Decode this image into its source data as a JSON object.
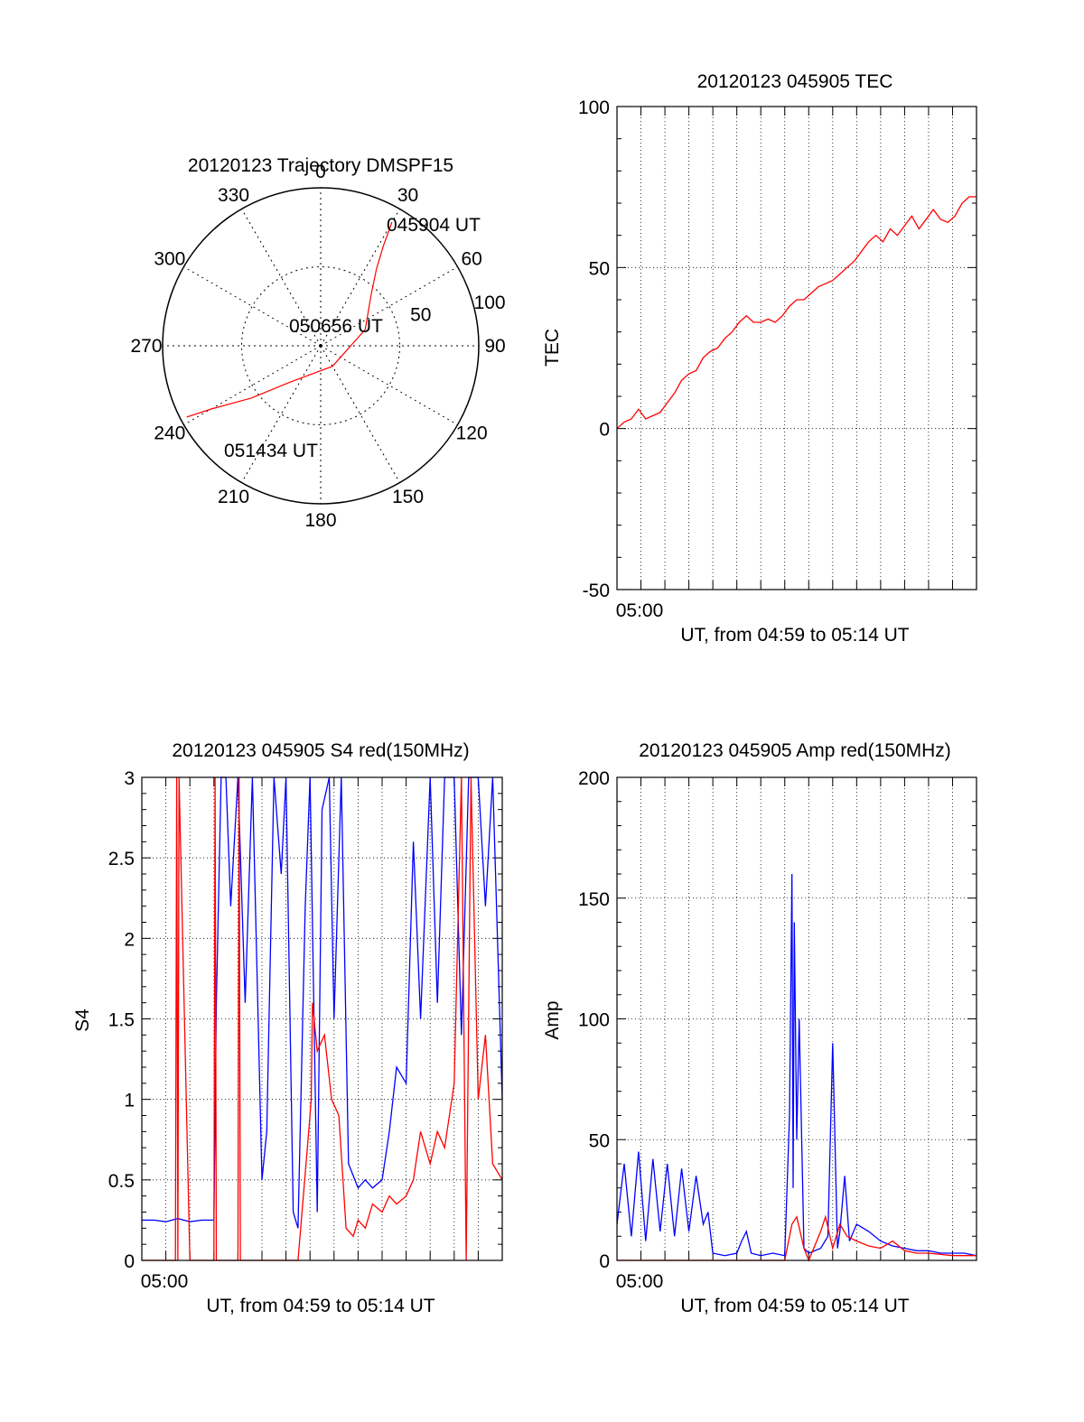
{
  "chart_data": [
    {
      "type": "polar-trajectory",
      "title": "20120123 Trajectory DMSPF15",
      "azimuth_labels": [
        "0",
        "30",
        "60",
        "90",
        "120",
        "150",
        "180",
        "210",
        "240",
        "270",
        "300",
        "330"
      ],
      "azimuth_values": [
        0,
        30,
        60,
        90,
        120,
        150,
        180,
        210,
        240,
        270,
        300,
        330
      ],
      "radial_labels": [
        "50",
        "100"
      ],
      "radial_values": [
        50,
        100
      ],
      "radial_max": 100,
      "track": [
        {
          "az": 30,
          "r": 90
        },
        {
          "az": 32,
          "r": 75
        },
        {
          "az": 36,
          "r": 60
        },
        {
          "az": 45,
          "r": 45
        },
        {
          "az": 70,
          "r": 30
        },
        {
          "az": 150,
          "r": 15
        },
        {
          "az": 220,
          "r": 30
        },
        {
          "az": 233,
          "r": 55
        },
        {
          "az": 240,
          "r": 80
        },
        {
          "az": 242,
          "r": 96
        }
      ],
      "annotations": [
        "045904 UT",
        "050656 UT",
        "051434 UT"
      ],
      "line_color": "#ff0000"
    },
    {
      "type": "line",
      "title": "20120123 045905 TEC",
      "xlabel": "UT, from 04:59 to 05:14 UT",
      "ylabel": "TEC",
      "xlim": [
        0,
        15
      ],
      "ylim": [
        -50,
        100
      ],
      "xtick_labels": [
        "05:00"
      ],
      "xtick_positions": [
        1
      ],
      "yticks": [
        -50,
        0,
        50,
        100
      ],
      "grid": true,
      "series": [
        {
          "color": "#ff0000",
          "x": [
            0,
            0.3,
            0.6,
            0.9,
            1.2,
            1.5,
            1.8,
            2.1,
            2.4,
            2.7,
            3.0,
            3.3,
            3.6,
            3.9,
            4.2,
            4.5,
            4.8,
            5.1,
            5.4,
            5.7,
            6.0,
            6.3,
            6.6,
            6.9,
            7.2,
            7.5,
            7.8,
            8.1,
            8.4,
            8.7,
            9.0,
            9.3,
            9.6,
            9.9,
            10.2,
            10.5,
            10.8,
            11.1,
            11.4,
            11.7,
            12.0,
            12.3,
            12.6,
            12.9,
            13.2,
            13.5,
            13.8,
            14.1,
            14.4,
            14.7,
            15.0
          ],
          "y": [
            0,
            2,
            3,
            6,
            3,
            4,
            5,
            8,
            11,
            15,
            17,
            18,
            22,
            24,
            25,
            28,
            30,
            33,
            35,
            33,
            33,
            34,
            33,
            35,
            38,
            40,
            40,
            42,
            44,
            45,
            46,
            48,
            50,
            52,
            55,
            58,
            60,
            58,
            62,
            60,
            63,
            66,
            62,
            65,
            68,
            65,
            64,
            66,
            70,
            72,
            72
          ]
        }
      ]
    },
    {
      "type": "line",
      "title": "20120123 045905 S4 red(150MHz)",
      "xlabel": "UT, from 04:59 to 05:14 UT",
      "ylabel": "S4",
      "xlim": [
        0,
        15
      ],
      "ylim": [
        0,
        3
      ],
      "xtick_labels": [
        "05:00"
      ],
      "xtick_positions": [
        1
      ],
      "yticks": [
        0,
        0.5,
        1,
        1.5,
        2,
        2.5,
        3
      ],
      "ytick_labels": [
        "0",
        "0.5",
        "1",
        "1.5",
        "2",
        "2.5",
        "3"
      ],
      "grid": true,
      "series": [
        {
          "color": "#0000ff",
          "x": [
            0,
            0.5,
            1.0,
            1.5,
            2.0,
            2.5,
            3.0,
            3.1,
            3.3,
            3.5,
            3.7,
            4.0,
            4.3,
            4.6,
            5.0,
            5.2,
            5.5,
            5.8,
            6.0,
            6.3,
            6.5,
            6.8,
            7.0,
            7.3,
            7.5,
            7.8,
            8.0,
            8.3,
            8.6,
            9.0,
            9.3,
            9.6,
            10.0,
            10.3,
            10.6,
            11.0,
            11.3,
            11.6,
            12.0,
            12.3,
            12.6,
            13.0,
            13.3,
            13.6,
            14.0,
            14.3,
            14.6,
            15.0
          ],
          "y": [
            0.25,
            0.25,
            0.24,
            0.26,
            0.24,
            0.25,
            0.25,
            1.6,
            3.0,
            3.0,
            2.2,
            3.0,
            1.6,
            3.0,
            0.5,
            0.8,
            3.0,
            2.4,
            3.0,
            0.3,
            0.2,
            2.2,
            3.0,
            0.3,
            2.8,
            3.0,
            1.5,
            3.0,
            0.6,
            0.45,
            0.5,
            0.45,
            0.5,
            0.8,
            1.2,
            1.1,
            2.6,
            1.5,
            3.0,
            1.6,
            3.0,
            3.0,
            1.4,
            3.0,
            3.0,
            2.2,
            3.0,
            1.0
          ]
        },
        {
          "color": "#ff0000",
          "x": [
            0,
            1.0,
            1.4,
            1.45,
            1.5,
            1.55,
            2.0,
            3.0,
            3.05,
            3.1,
            3.5,
            4.0,
            4.05,
            4.1,
            5.0,
            5.5,
            6.0,
            6.5,
            7.0,
            7.05,
            7.1,
            7.3,
            7.6,
            7.9,
            8.2,
            8.5,
            8.8,
            9.0,
            9.3,
            9.6,
            10.0,
            10.3,
            10.6,
            11.0,
            11.3,
            11.6,
            12.0,
            12.3,
            12.6,
            13.0,
            13.3,
            13.5,
            13.7,
            14.0,
            14.3,
            14.6,
            15.0
          ],
          "y": [
            0,
            0,
            0,
            3.0,
            0,
            3.0,
            0,
            0,
            3.0,
            0,
            0,
            0,
            3.0,
            0,
            0,
            0,
            0,
            0,
            0.9,
            1.0,
            1.6,
            1.3,
            1.4,
            1.0,
            0.9,
            0.2,
            0.15,
            0.25,
            0.2,
            0.35,
            0.3,
            0.4,
            0.35,
            0.4,
            0.5,
            0.8,
            0.6,
            0.8,
            0.7,
            1.1,
            3.0,
            0,
            3.0,
            1.0,
            1.4,
            0.6,
            0.5
          ]
        }
      ]
    },
    {
      "type": "line",
      "title": "20120123 045905 Amp red(150MHz)",
      "xlabel": "UT, from 04:59 to 05:14 UT",
      "ylabel": "Amp",
      "xlim": [
        0,
        15
      ],
      "ylim": [
        0,
        200
      ],
      "xtick_labels": [
        "05:00"
      ],
      "xtick_positions": [
        1
      ],
      "yticks": [
        0,
        50,
        100,
        150,
        200
      ],
      "grid": true,
      "series": [
        {
          "color": "#0000ff",
          "x": [
            0,
            0.3,
            0.6,
            0.9,
            1.2,
            1.5,
            1.8,
            2.1,
            2.4,
            2.7,
            3.0,
            3.3,
            3.6,
            3.8,
            4.0,
            4.5,
            5.0,
            5.2,
            5.4,
            5.6,
            6.0,
            6.5,
            7.0,
            7.2,
            7.3,
            7.35,
            7.4,
            7.5,
            7.6,
            7.8,
            8.0,
            8.5,
            8.8,
            9.0,
            9.2,
            9.3,
            9.5,
            9.7,
            10.0,
            10.5,
            11.0,
            11.5,
            12.0,
            12.5,
            13.0,
            13.5,
            14.0,
            14.5,
            15.0
          ],
          "y": [
            15,
            40,
            10,
            45,
            8,
            42,
            12,
            40,
            10,
            38,
            12,
            35,
            15,
            20,
            3,
            2,
            3,
            8,
            12,
            3,
            2,
            3,
            2,
            60,
            160,
            30,
            140,
            50,
            100,
            5,
            3,
            5,
            10,
            90,
            5,
            12,
            35,
            8,
            15,
            12,
            8,
            6,
            5,
            4,
            4,
            3,
            3,
            3,
            2
          ]
        },
        {
          "color": "#ff0000",
          "x": [
            0,
            1,
            2,
            3,
            3.7,
            4.0,
            5.0,
            6.0,
            7.0,
            7.3,
            7.5,
            7.8,
            8.0,
            8.5,
            8.7,
            9.0,
            9.3,
            9.6,
            10.0,
            10.5,
            11.0,
            11.5,
            12.0,
            12.5,
            13.0,
            14.0,
            15.0
          ],
          "y": [
            0,
            0,
            0,
            0,
            0,
            0,
            0,
            0,
            0,
            15,
            18,
            5,
            0,
            12,
            18,
            5,
            15,
            10,
            8,
            6,
            5,
            8,
            4,
            3,
            3,
            2,
            2
          ]
        }
      ]
    }
  ]
}
